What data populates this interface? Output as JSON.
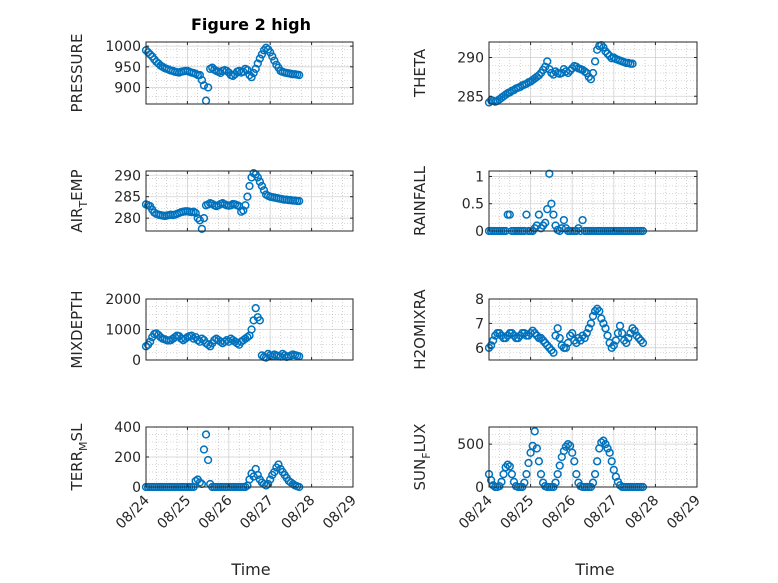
{
  "figure": {
    "title": "Figure 2 high",
    "marker_color": "#0072BD",
    "x_tick_labels": [
      "08/24",
      "08/25",
      "08/26",
      "08/27",
      "08/28",
      "08/29"
    ],
    "xlabel": "Time"
  },
  "chart_data": [
    {
      "type": "scatter",
      "ylabel": "PRESSURE",
      "ylabel_parts": [
        "PRESSURE"
      ],
      "xlim": [
        0,
        5
      ],
      "ylim": [
        860,
        1010
      ],
      "yticks": [
        900,
        950,
        1000
      ],
      "grid": true,
      "show_xticklabels": false,
      "x": [
        0.0,
        0.05,
        0.1,
        0.15,
        0.2,
        0.25,
        0.3,
        0.35,
        0.4,
        0.45,
        0.5,
        0.55,
        0.6,
        0.65,
        0.7,
        0.75,
        0.8,
        0.85,
        0.9,
        0.95,
        1.0,
        1.05,
        1.1,
        1.15,
        1.2,
        1.25,
        1.3,
        1.35,
        1.4,
        1.45,
        1.5,
        1.55,
        1.6,
        1.65,
        1.7,
        1.75,
        1.8,
        1.85,
        1.9,
        1.95,
        2.0,
        2.05,
        2.1,
        2.15,
        2.2,
        2.25,
        2.3,
        2.35,
        2.4,
        2.45,
        2.5,
        2.55,
        2.6,
        2.65,
        2.7,
        2.75,
        2.8,
        2.85,
        2.9,
        2.95,
        3.0,
        3.05,
        3.1,
        3.15,
        3.2,
        3.25,
        3.3,
        3.35,
        3.4,
        3.45,
        3.5,
        3.55,
        3.6,
        3.65,
        3.7
      ],
      "y": [
        990,
        985,
        980,
        975,
        968,
        962,
        958,
        953,
        950,
        947,
        945,
        943,
        941,
        940,
        938,
        937,
        936,
        938,
        939,
        940,
        940,
        938,
        936,
        935,
        933,
        930,
        930,
        918,
        905,
        868,
        900,
        945,
        948,
        943,
        940,
        938,
        935,
        940,
        942,
        940,
        936,
        930,
        928,
        932,
        938,
        940,
        936,
        938,
        945,
        942,
        930,
        925,
        935,
        945,
        958,
        970,
        980,
        990,
        996,
        992,
        985,
        975,
        965,
        955,
        948,
        940,
        938,
        936,
        935,
        934,
        933,
        932,
        932,
        931,
        930
      ]
    },
    {
      "type": "scatter",
      "ylabel": "THETA",
      "ylabel_parts": [
        "THETA"
      ],
      "xlim": [
        0,
        5
      ],
      "ylim": [
        284,
        292
      ],
      "yticks": [
        285,
        290
      ],
      "grid": true,
      "show_xticklabels": false,
      "x": [
        0.0,
        0.05,
        0.1,
        0.15,
        0.2,
        0.25,
        0.3,
        0.35,
        0.4,
        0.45,
        0.5,
        0.55,
        0.6,
        0.65,
        0.7,
        0.75,
        0.8,
        0.85,
        0.9,
        0.95,
        1.0,
        1.05,
        1.1,
        1.15,
        1.2,
        1.25,
        1.3,
        1.35,
        1.4,
        1.45,
        1.5,
        1.55,
        1.6,
        1.65,
        1.7,
        1.75,
        1.8,
        1.85,
        1.9,
        1.95,
        2.0,
        2.05,
        2.1,
        2.15,
        2.2,
        2.25,
        2.3,
        2.35,
        2.4,
        2.45,
        2.5,
        2.55,
        2.6,
        2.65,
        2.7,
        2.75,
        2.8,
        2.85,
        2.9,
        2.95,
        3.0,
        3.05,
        3.1,
        3.15,
        3.2,
        3.25,
        3.3,
        3.35,
        3.4,
        3.45
      ],
      "y": [
        284.2,
        284.5,
        284.4,
        284.3,
        284.4,
        284.6,
        284.8,
        285.0,
        285.2,
        285.4,
        285.5,
        285.7,
        285.8,
        286.0,
        286.1,
        286.2,
        286.4,
        286.5,
        286.6,
        286.8,
        286.9,
        287.1,
        287.3,
        287.5,
        287.7,
        288.0,
        288.4,
        288.8,
        289.5,
        288.5,
        288.0,
        287.8,
        288.2,
        288.0,
        287.9,
        288.0,
        288.5,
        288.2,
        288.0,
        288.3,
        288.6,
        288.9,
        288.8,
        288.6,
        288.5,
        288.4,
        288.2,
        288.0,
        287.5,
        287.2,
        288.0,
        289.5,
        291.0,
        291.5,
        291.6,
        291.3,
        290.8,
        290.5,
        290.2,
        289.9,
        290.0,
        289.8,
        289.7,
        289.6,
        289.5,
        289.4,
        289.3,
        289.3,
        289.2,
        289.2
      ]
    },
    {
      "type": "scatter",
      "ylabel": "AIR_TEMP",
      "ylabel_parts": [
        "AIR",
        "T",
        "EMP"
      ],
      "xlim": [
        0,
        5
      ],
      "ylim": [
        277,
        291
      ],
      "yticks": [
        280,
        285,
        290
      ],
      "grid": true,
      "show_xticklabels": false,
      "x": [
        0.0,
        0.05,
        0.1,
        0.15,
        0.2,
        0.25,
        0.3,
        0.35,
        0.4,
        0.45,
        0.5,
        0.55,
        0.6,
        0.65,
        0.7,
        0.75,
        0.8,
        0.85,
        0.9,
        0.95,
        1.0,
        1.05,
        1.1,
        1.15,
        1.2,
        1.25,
        1.3,
        1.35,
        1.4,
        1.45,
        1.5,
        1.55,
        1.6,
        1.65,
        1.7,
        1.75,
        1.8,
        1.85,
        1.9,
        1.95,
        2.0,
        2.05,
        2.1,
        2.15,
        2.2,
        2.25,
        2.3,
        2.35,
        2.4,
        2.45,
        2.5,
        2.55,
        2.6,
        2.65,
        2.7,
        2.75,
        2.8,
        2.85,
        2.9,
        2.95,
        3.0,
        3.05,
        3.1,
        3.15,
        3.2,
        3.25,
        3.3,
        3.35,
        3.4,
        3.45,
        3.5,
        3.55,
        3.6,
        3.65,
        3.7
      ],
      "y": [
        283.2,
        283.0,
        282.8,
        282.0,
        281.3,
        281.0,
        280.8,
        280.7,
        280.6,
        280.5,
        280.6,
        280.7,
        280.8,
        280.7,
        280.8,
        281.0,
        281.2,
        281.4,
        281.5,
        281.6,
        281.6,
        281.5,
        281.4,
        281.5,
        281.2,
        280.0,
        279.5,
        277.5,
        280.0,
        283.0,
        283.2,
        283.5,
        283.3,
        283.0,
        282.8,
        283.0,
        283.3,
        283.5,
        283.2,
        283.0,
        282.9,
        283.0,
        283.3,
        283.2,
        283.0,
        282.8,
        281.5,
        281.8,
        283.0,
        285.0,
        287.5,
        289.5,
        290.5,
        290.2,
        289.5,
        288.5,
        287.5,
        286.5,
        285.5,
        285.2,
        285.0,
        284.9,
        284.8,
        284.7,
        284.6,
        284.5,
        284.4,
        284.3,
        284.3,
        284.2,
        284.2,
        284.1,
        284.1,
        284.0,
        284.0
      ]
    },
    {
      "type": "scatter",
      "ylabel": "RAINFALL",
      "ylabel_parts": [
        "RAINFALL"
      ],
      "xlim": [
        0,
        5
      ],
      "ylim": [
        0,
        1.1
      ],
      "yticks": [
        0,
        0.5,
        1
      ],
      "grid": true,
      "show_xticklabels": false,
      "x": [
        0.0,
        0.05,
        0.1,
        0.15,
        0.2,
        0.25,
        0.3,
        0.35,
        0.4,
        0.45,
        0.5,
        0.55,
        0.6,
        0.65,
        0.7,
        0.75,
        0.8,
        0.85,
        0.9,
        0.95,
        1.0,
        1.05,
        1.1,
        1.15,
        1.2,
        1.25,
        1.3,
        1.35,
        1.4,
        1.45,
        1.5,
        1.55,
        1.6,
        1.65,
        1.7,
        1.75,
        1.8,
        1.85,
        1.9,
        1.95,
        2.0,
        2.05,
        2.1,
        2.15,
        2.2,
        2.25,
        2.3,
        2.35,
        2.4,
        2.45,
        2.5,
        2.55,
        2.6,
        2.65,
        2.7,
        2.75,
        2.8,
        2.85,
        2.9,
        2.95,
        3.0,
        3.05,
        3.1,
        3.15,
        3.2,
        3.25,
        3.3,
        3.35,
        3.4,
        3.45,
        3.5,
        3.55,
        3.6,
        3.65,
        3.7
      ],
      "y": [
        0,
        0,
        0,
        0,
        0,
        0,
        0,
        0,
        0,
        0.3,
        0.3,
        0,
        0,
        0,
        0,
        0,
        0,
        0,
        0.3,
        0,
        0,
        0,
        0.05,
        0.1,
        0.3,
        0.05,
        0.1,
        0.15,
        0.4,
        1.05,
        0.5,
        0.3,
        0.1,
        0.02,
        0,
        0.05,
        0.2,
        0.05,
        0,
        0,
        0,
        0,
        0,
        0.05,
        0,
        0.2,
        0,
        0,
        0,
        0,
        0,
        0,
        0,
        0,
        0,
        0,
        0,
        0,
        0,
        0,
        0,
        0,
        0,
        0,
        0,
        0,
        0,
        0,
        0,
        0,
        0,
        0,
        0,
        0,
        0
      ]
    },
    {
      "type": "scatter",
      "ylabel": "MIXDEPTH",
      "ylabel_parts": [
        "MIXDEPTH"
      ],
      "xlim": [
        0,
        5
      ],
      "ylim": [
        0,
        2000
      ],
      "yticks": [
        0,
        1000,
        2000
      ],
      "grid": true,
      "show_xticklabels": false,
      "x": [
        0.0,
        0.05,
        0.1,
        0.15,
        0.2,
        0.25,
        0.3,
        0.35,
        0.4,
        0.45,
        0.5,
        0.55,
        0.6,
        0.65,
        0.7,
        0.75,
        0.8,
        0.85,
        0.9,
        0.95,
        1.0,
        1.05,
        1.1,
        1.15,
        1.2,
        1.25,
        1.3,
        1.35,
        1.4,
        1.45,
        1.5,
        1.55,
        1.6,
        1.65,
        1.7,
        1.75,
        1.8,
        1.85,
        1.9,
        1.95,
        2.0,
        2.05,
        2.1,
        2.15,
        2.2,
        2.25,
        2.3,
        2.35,
        2.4,
        2.45,
        2.5,
        2.55,
        2.6,
        2.65,
        2.7,
        2.75,
        2.8,
        2.85,
        2.9,
        2.95,
        3.0,
        3.05,
        3.1,
        3.15,
        3.2,
        3.25,
        3.3,
        3.35,
        3.4,
        3.45,
        3.5,
        3.55,
        3.6,
        3.65,
        3.7
      ],
      "y": [
        450,
        500,
        600,
        750,
        850,
        870,
        820,
        750,
        700,
        680,
        650,
        640,
        650,
        700,
        750,
        800,
        780,
        700,
        650,
        700,
        750,
        780,
        800,
        700,
        750,
        650,
        600,
        700,
        650,
        550,
        500,
        450,
        550,
        650,
        700,
        650,
        600,
        550,
        600,
        650,
        600,
        700,
        650,
        600,
        550,
        500,
        600,
        650,
        700,
        750,
        800,
        1000,
        1300,
        1700,
        1400,
        1300,
        150,
        100,
        80,
        200,
        150,
        120,
        180,
        150,
        130,
        110,
        200,
        150,
        100,
        120,
        150,
        180,
        160,
        140,
        120
      ]
    },
    {
      "type": "scatter",
      "ylabel": "H2OMIXRA",
      "ylabel_parts": [
        "H2OMIXRA"
      ],
      "xlim": [
        0,
        5
      ],
      "ylim": [
        5.5,
        8
      ],
      "yticks": [
        6,
        7,
        8
      ],
      "grid": true,
      "show_xticklabels": false,
      "x": [
        0.0,
        0.05,
        0.1,
        0.15,
        0.2,
        0.25,
        0.3,
        0.35,
        0.4,
        0.45,
        0.5,
        0.55,
        0.6,
        0.65,
        0.7,
        0.75,
        0.8,
        0.85,
        0.9,
        0.95,
        1.0,
        1.05,
        1.1,
        1.15,
        1.2,
        1.25,
        1.3,
        1.35,
        1.4,
        1.45,
        1.5,
        1.55,
        1.6,
        1.65,
        1.7,
        1.75,
        1.8,
        1.85,
        1.9,
        1.95,
        2.0,
        2.05,
        2.1,
        2.15,
        2.2,
        2.25,
        2.3,
        2.35,
        2.4,
        2.45,
        2.5,
        2.55,
        2.6,
        2.65,
        2.7,
        2.75,
        2.8,
        2.85,
        2.9,
        2.95,
        3.0,
        3.05,
        3.1,
        3.15,
        3.2,
        3.25,
        3.3,
        3.35,
        3.4,
        3.45,
        3.5,
        3.55,
        3.6,
        3.65,
        3.7
      ],
      "y": [
        6.0,
        6.1,
        6.3,
        6.5,
        6.6,
        6.6,
        6.5,
        6.4,
        6.4,
        6.5,
        6.6,
        6.6,
        6.5,
        6.4,
        6.4,
        6.5,
        6.6,
        6.6,
        6.5,
        6.5,
        6.6,
        6.7,
        6.6,
        6.5,
        6.4,
        6.4,
        6.3,
        6.2,
        6.1,
        6.0,
        5.9,
        5.8,
        6.5,
        6.8,
        6.4,
        6.1,
        6.0,
        6.0,
        6.2,
        6.5,
        6.6,
        6.3,
        6.2,
        6.4,
        6.3,
        6.5,
        6.4,
        6.6,
        6.8,
        7.0,
        7.3,
        7.5,
        7.6,
        7.5,
        7.2,
        7.0,
        6.8,
        6.5,
        6.2,
        6.0,
        6.1,
        6.3,
        6.6,
        6.9,
        6.6,
        6.3,
        6.2,
        6.4,
        6.6,
        6.8,
        6.7,
        6.5,
        6.4,
        6.3,
        6.2
      ]
    },
    {
      "type": "scatter",
      "ylabel": "TERR_MSL",
      "ylabel_parts": [
        "TERR",
        "M",
        "SL"
      ],
      "xlim": [
        0,
        5
      ],
      "ylim": [
        0,
        400
      ],
      "yticks": [
        0,
        200,
        400
      ],
      "grid": true,
      "show_xticklabels": true,
      "x": [
        0.0,
        0.05,
        0.1,
        0.15,
        0.2,
        0.25,
        0.3,
        0.35,
        0.4,
        0.45,
        0.5,
        0.55,
        0.6,
        0.65,
        0.7,
        0.75,
        0.8,
        0.85,
        0.9,
        0.95,
        1.0,
        1.05,
        1.1,
        1.15,
        1.2,
        1.25,
        1.3,
        1.35,
        1.4,
        1.45,
        1.5,
        1.55,
        1.6,
        1.65,
        1.7,
        1.75,
        1.8,
        1.85,
        1.9,
        1.95,
        2.0,
        2.05,
        2.1,
        2.15,
        2.2,
        2.25,
        2.3,
        2.35,
        2.4,
        2.45,
        2.5,
        2.55,
        2.6,
        2.65,
        2.7,
        2.75,
        2.8,
        2.85,
        2.9,
        2.95,
        3.0,
        3.05,
        3.1,
        3.15,
        3.2,
        3.25,
        3.3,
        3.35,
        3.4,
        3.45,
        3.5,
        3.55,
        3.6,
        3.65,
        3.7
      ],
      "y": [
        0,
        0,
        0,
        0,
        0,
        0,
        0,
        0,
        0,
        0,
        0,
        0,
        0,
        0,
        0,
        0,
        0,
        0,
        0,
        0,
        0,
        0,
        0,
        0,
        40,
        50,
        30,
        20,
        250,
        350,
        180,
        20,
        0,
        0,
        0,
        0,
        0,
        0,
        0,
        0,
        0,
        0,
        0,
        0,
        0,
        0,
        0,
        0,
        0,
        10,
        50,
        90,
        70,
        120,
        80,
        50,
        30,
        20,
        10,
        20,
        50,
        80,
        100,
        130,
        150,
        120,
        100,
        80,
        60,
        40,
        30,
        20,
        10,
        5,
        0
      ]
    },
    {
      "type": "scatter",
      "ylabel": "SUN_FLUX",
      "ylabel_parts": [
        "SUN",
        "F",
        "LUX"
      ],
      "xlim": [
        0,
        5
      ],
      "ylim": [
        0,
        700
      ],
      "yticks": [
        0,
        500
      ],
      "grid": true,
      "show_xticklabels": true,
      "x": [
        0.0,
        0.05,
        0.1,
        0.15,
        0.2,
        0.25,
        0.3,
        0.35,
        0.4,
        0.45,
        0.5,
        0.55,
        0.6,
        0.65,
        0.7,
        0.75,
        0.8,
        0.85,
        0.9,
        0.95,
        1.0,
        1.05,
        1.1,
        1.15,
        1.2,
        1.25,
        1.3,
        1.35,
        1.4,
        1.45,
        1.5,
        1.55,
        1.6,
        1.65,
        1.7,
        1.75,
        1.8,
        1.85,
        1.9,
        1.95,
        2.0,
        2.05,
        2.1,
        2.15,
        2.2,
        2.25,
        2.3,
        2.35,
        2.4,
        2.45,
        2.5,
        2.55,
        2.6,
        2.65,
        2.7,
        2.75,
        2.8,
        2.85,
        2.9,
        2.95,
        3.0,
        3.05,
        3.1,
        3.15,
        3.2,
        3.25,
        3.3,
        3.35,
        3.4,
        3.45,
        3.5,
        3.55,
        3.6,
        3.65,
        3.7
      ],
      "y": [
        150,
        80,
        20,
        0,
        0,
        10,
        60,
        150,
        230,
        260,
        240,
        150,
        60,
        10,
        0,
        0,
        0,
        50,
        150,
        280,
        400,
        480,
        650,
        450,
        300,
        150,
        50,
        10,
        0,
        0,
        0,
        0,
        50,
        150,
        250,
        350,
        420,
        470,
        500,
        480,
        400,
        300,
        150,
        50,
        10,
        0,
        0,
        0,
        0,
        0,
        50,
        150,
        300,
        450,
        520,
        540,
        500,
        450,
        400,
        300,
        200,
        120,
        60,
        20,
        0,
        0,
        0,
        0,
        0,
        0,
        0,
        0,
        0,
        0,
        0
      ]
    }
  ]
}
